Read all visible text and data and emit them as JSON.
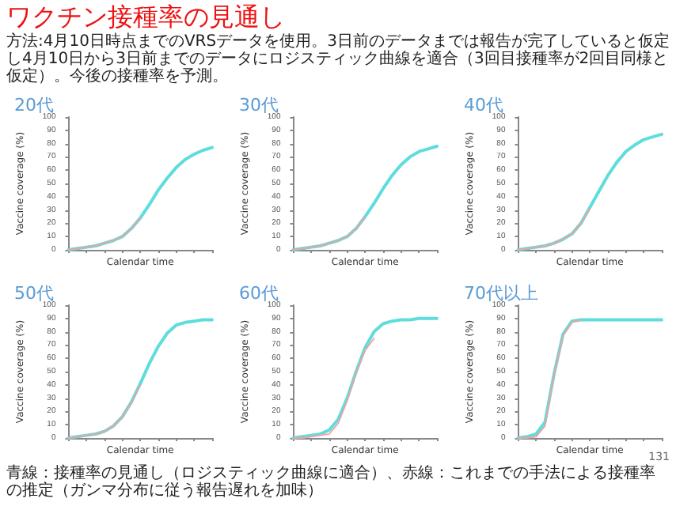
{
  "chart_data": [
    {
      "type": "other",
      "title": "ワクチン接種率の見通し",
      "subtitle": "方法:4月10日時点までのVRSデータを使用。3日前のデータまでは報告が完了していると仮定し4月10日から3日前までのデータにロジスティック曲線を適合（3回目接種率が2回目同様と仮定）。今後の接種率を予測。"
    },
    {
      "type": "line",
      "title": "20代",
      "xlabel": "Calendar time",
      "ylabel": "Vaccine coverage (%)",
      "categories": [
        null,
        null,
        null,
        null,
        null,
        null,
        null,
        null,
        null,
        null,
        null,
        null,
        null,
        null,
        null,
        null,
        null
      ],
      "ylim": [
        0,
        100
      ],
      "yticks": [
        0,
        10,
        20,
        30,
        40,
        50,
        60,
        70,
        80,
        90,
        100
      ],
      "tick_labels": "y",
      "marker": "none",
      "line_style": "solid",
      "series": [
        {
          "color": "#f4a0a0",
          "values": [
            0,
            1,
            2,
            3,
            5,
            7,
            10,
            16,
            24,
            null,
            null,
            null,
            null,
            null,
            null,
            null,
            null
          ]
        },
        {
          "color": "#5fdcdc",
          "values": [
            0,
            1,
            2,
            3,
            5,
            7,
            10,
            16,
            24,
            34,
            45,
            54,
            62,
            68,
            72,
            75,
            77
          ]
        }
      ]
    },
    {
      "type": "line",
      "title": "30代",
      "xlabel": "Calendar time",
      "ylabel": "Vaccine coverage (%)",
      "categories": [
        null,
        null,
        null,
        null,
        null,
        null,
        null,
        null,
        null,
        null,
        null,
        null,
        null,
        null,
        null,
        null,
        null
      ],
      "ylim": [
        0,
        100
      ],
      "yticks": [
        0,
        10,
        20,
        30,
        40,
        50,
        60,
        70,
        80,
        90,
        100
      ],
      "tick_labels": "y",
      "marker": "none",
      "line_style": "solid",
      "series": [
        {
          "color": "#f4a0a0",
          "values": [
            0,
            1,
            2,
            3,
            5,
            7,
            10,
            16,
            25,
            null,
            null,
            null,
            null,
            null,
            null,
            null,
            null
          ]
        },
        {
          "color": "#5fdcdc",
          "values": [
            0,
            1,
            2,
            3,
            5,
            7,
            10,
            16,
            25,
            35,
            46,
            56,
            64,
            70,
            74,
            76,
            78
          ]
        }
      ]
    },
    {
      "type": "line",
      "title": "40代",
      "xlabel": "Calendar time",
      "ylabel": "Vaccine coverage (%)",
      "categories": [
        null,
        null,
        null,
        null,
        null,
        null,
        null,
        null,
        null,
        null,
        null,
        null,
        null,
        null,
        null,
        null,
        null
      ],
      "ylim": [
        0,
        100
      ],
      "yticks": [
        0,
        10,
        20,
        30,
        40,
        50,
        60,
        70,
        80,
        90,
        100
      ],
      "tick_labels": "y",
      "marker": "none",
      "line_style": "solid",
      "series": [
        {
          "color": "#f4a0a0",
          "values": [
            0,
            1,
            2,
            3,
            5,
            8,
            12,
            20,
            31,
            null,
            null,
            null,
            null,
            null,
            null,
            null,
            null
          ]
        },
        {
          "color": "#5fdcdc",
          "values": [
            0,
            1,
            2,
            3,
            5,
            8,
            12,
            20,
            32,
            44,
            56,
            66,
            74,
            79,
            83,
            85,
            87
          ]
        }
      ]
    },
    {
      "type": "line",
      "title": "50代",
      "xlabel": "Calendar time",
      "ylabel": "Vaccine coverage (%)",
      "categories": [
        null,
        null,
        null,
        null,
        null,
        null,
        null,
        null,
        null,
        null,
        null,
        null,
        null,
        null,
        null,
        null,
        null
      ],
      "ylim": [
        0,
        100
      ],
      "yticks": [
        0,
        10,
        20,
        30,
        40,
        50,
        60,
        70,
        80,
        90,
        100
      ],
      "tick_labels": "y",
      "marker": "none",
      "line_style": "solid",
      "series": [
        {
          "color": "#f4a0a0",
          "values": [
            0,
            1,
            2,
            3,
            5,
            9,
            16,
            26,
            40,
            null,
            null,
            null,
            null,
            null,
            null,
            null,
            null
          ]
        },
        {
          "color": "#5fdcdc",
          "values": [
            0,
            1,
            2,
            3,
            5,
            9,
            16,
            27,
            41,
            56,
            69,
            79,
            85,
            87,
            88,
            89,
            89
          ]
        }
      ]
    },
    {
      "type": "line",
      "title": "60代",
      "xlabel": "Calendar time",
      "ylabel": "Vaccine coverage (%)",
      "categories": [
        null,
        null,
        null,
        null,
        null,
        null,
        null,
        null,
        null,
        null,
        null,
        null,
        null,
        null,
        null,
        null,
        null
      ],
      "ylim": [
        0,
        100
      ],
      "yticks": [
        0,
        10,
        20,
        30,
        40,
        50,
        60,
        70,
        80,
        90,
        100
      ],
      "tick_labels": "y",
      "marker": "none",
      "line_style": "solid",
      "series": [
        {
          "color": "#f4a0a0",
          "values": [
            0,
            0,
            1,
            2,
            3,
            11,
            28,
            49,
            66,
            75,
            null,
            null,
            null,
            null,
            null,
            null,
            null
          ]
        },
        {
          "color": "#5fdcdc",
          "values": [
            0,
            1,
            2,
            3,
            6,
            14,
            30,
            50,
            68,
            80,
            86,
            88,
            89,
            89,
            90,
            90,
            90
          ]
        }
      ]
    },
    {
      "type": "line",
      "title": "70代以上",
      "xlabel": "Calendar time",
      "ylabel": "Vaccine coverage (%)",
      "categories": [
        null,
        null,
        null,
        null,
        null,
        null,
        null,
        null,
        null,
        null,
        null,
        null,
        null,
        null,
        null,
        null,
        null
      ],
      "ylim": [
        0,
        100
      ],
      "yticks": [
        0,
        10,
        20,
        30,
        40,
        50,
        60,
        70,
        80,
        90,
        100
      ],
      "tick_labels": "y",
      "marker": "none",
      "line_style": "solid",
      "series": [
        {
          "color": "#f4a0a0",
          "values": [
            0,
            0,
            1,
            9,
            47,
            77,
            87,
            89,
            null,
            null,
            null,
            null,
            null,
            null,
            null,
            null,
            null
          ]
        },
        {
          "color": "#5fdcdc",
          "values": [
            0,
            1,
            3,
            12,
            48,
            78,
            88,
            89,
            89,
            89,
            89,
            89,
            89,
            89,
            89,
            89,
            89
          ]
        }
      ]
    },
    {
      "type": "other",
      "annotations": [
        "青線：接種率の見通し（ロジスティック曲線に適合）、赤線：これまでの手法による接種率の推定（ガンマ分布に従う報告遅れを加味）",
        "131"
      ]
    }
  ]
}
